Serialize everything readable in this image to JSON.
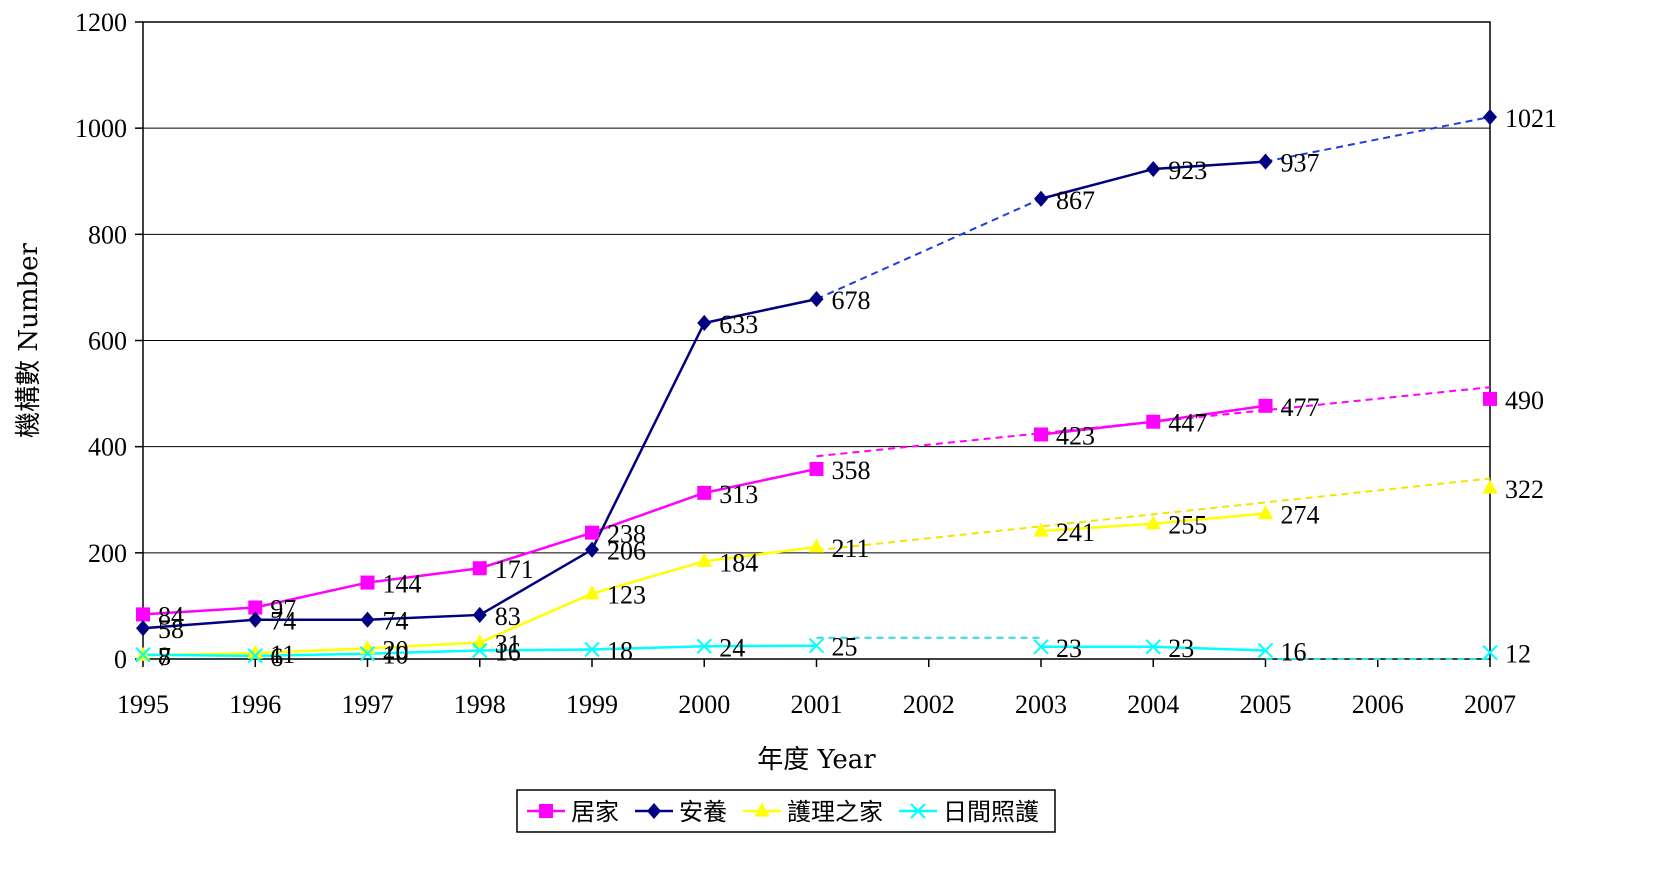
{
  "chart_data": {
    "type": "line",
    "xlabel": "年度 Year",
    "ylabel": "機構數 Number",
    "ylim": [
      0,
      1200
    ],
    "yticks": [
      "0",
      "200",
      "400",
      "600",
      "800",
      "1000",
      "1200"
    ],
    "categories": [
      "1995",
      "1996",
      "1997",
      "1998",
      "1999",
      "2000",
      "2001",
      "2002",
      "2003",
      "2004",
      "2005",
      "2006",
      "2007"
    ],
    "grid": true,
    "legend_position": "bottom",
    "series": [
      {
        "name": "居家",
        "color": "#ff00ff",
        "marker": "square",
        "values": [
          84,
          97,
          144,
          171,
          238,
          313,
          358,
          null,
          423,
          447,
          477,
          null,
          490
        ],
        "labels": [
          "84",
          "97",
          "144",
          "171",
          "238",
          "313",
          "358",
          "",
          "423",
          "447",
          "477",
          "",
          "490"
        ],
        "trend": [
          {
            "x": [
              6,
              12
            ],
            "y": [
              382,
              512
            ]
          }
        ]
      },
      {
        "name": "安養",
        "color": "#000080",
        "trend_color": "#1f3fdc",
        "marker": "diamond",
        "values": [
          58,
          74,
          74,
          83,
          206,
          633,
          678,
          null,
          867,
          923,
          937,
          null,
          1021
        ],
        "labels": [
          "58",
          "74",
          "74",
          "83",
          "206",
          "633",
          "678",
          "",
          "867",
          "923",
          "937",
          "",
          "1021"
        ],
        "trend": [
          {
            "x": [
              6,
              8
            ],
            "y": [
              678,
              867
            ]
          },
          {
            "x": [
              10,
              12
            ],
            "y": [
              937,
              1021
            ]
          }
        ]
      },
      {
        "name": "護理之家",
        "color": "#ffff00",
        "trend_color": "#f2e600",
        "marker": "triangle",
        "values": [
          7,
          11,
          20,
          31,
          123,
          184,
          211,
          null,
          241,
          255,
          274,
          null,
          322
        ],
        "labels": [
          "7",
          "11",
          "20",
          "31",
          "123",
          "184",
          "211",
          "",
          "241",
          "255",
          "274",
          "",
          "322"
        ],
        "trend": [
          {
            "x": [
              6,
              12
            ],
            "y": [
              205,
              340
            ]
          }
        ]
      },
      {
        "name": "日間照護",
        "color": "#00ffff",
        "trend_color": "#33d6e6",
        "marker": "x",
        "values": [
          8,
          6,
          10,
          16,
          18,
          24,
          25,
          null,
          23,
          23,
          16,
          null,
          12
        ],
        "labels": [
          "8",
          "6",
          "10",
          "16",
          "18",
          "24",
          "25",
          "",
          "23",
          "23",
          "16",
          "",
          "12"
        ],
        "trend": [
          {
            "x": [
              6,
              8
            ],
            "y": [
              40,
              40
            ]
          },
          {
            "x": [
              10,
              12
            ],
            "y": [
              0,
              0
            ]
          }
        ]
      }
    ]
  }
}
